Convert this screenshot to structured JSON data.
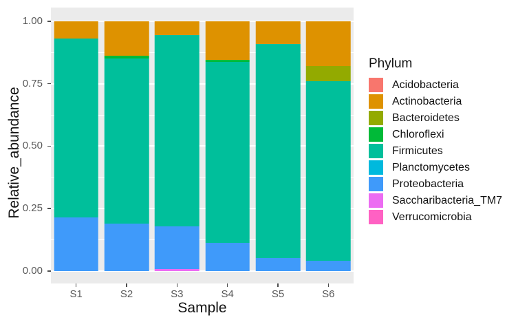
{
  "figure": {
    "background": "#ffffff",
    "panel_background": "#EBEBEB",
    "gridline_color": "#ffffff",
    "tick_label_color": "#595959"
  },
  "chart_data": {
    "type": "bar",
    "stacked": true,
    "title": "",
    "xlabel": "Sample",
    "ylabel": "Relative_abundance",
    "legend_title": "Phylum",
    "legend_position": "right",
    "grid": true,
    "ylim": [
      0,
      1
    ],
    "y_axis_expansion": 0.05,
    "categories": [
      "S1",
      "S2",
      "S3",
      "S4",
      "S5",
      "S6"
    ],
    "y_ticks": {
      "values": [
        0,
        0.25,
        0.5,
        0.75,
        1.0
      ],
      "labels": [
        "0.00",
        "0.25",
        "0.50",
        "0.75",
        "1.00"
      ]
    },
    "y_minor_ticks": [
      0.125,
      0.375,
      0.625,
      0.875
    ],
    "series": [
      {
        "name": "Acidobacteria",
        "color": "#F8766D",
        "values": [
          0,
          0,
          0,
          0,
          0,
          0
        ]
      },
      {
        "name": "Actinobacteria",
        "color": "#DE9200",
        "values": [
          0.07,
          0.138,
          0.055,
          0.155,
          0.092,
          0.18
        ]
      },
      {
        "name": "Bacteroidetes",
        "color": "#93AA00",
        "values": [
          0,
          0,
          0,
          0,
          0,
          0.06
        ]
      },
      {
        "name": "Chloroflexi",
        "color": "#00BA38",
        "values": [
          0,
          0.012,
          0,
          0.008,
          0,
          0
        ]
      },
      {
        "name": "Firmicutes",
        "color": "#00BF9B",
        "values": [
          0.715,
          0.66,
          0.767,
          0.725,
          0.856,
          0.72
        ]
      },
      {
        "name": "Planctomycetes",
        "color": "#00B9DD",
        "values": [
          0,
          0,
          0,
          0,
          0,
          0
        ]
      },
      {
        "name": "Proteobacteria",
        "color": "#3F9AFA",
        "values": [
          0.215,
          0.19,
          0.17,
          0.112,
          0.052,
          0.04
        ]
      },
      {
        "name": "Saccharibacteria_TM7",
        "color": "#EC6CF2",
        "values": [
          0,
          0,
          0.008,
          0,
          0,
          0
        ]
      },
      {
        "name": "Verrucomicrobia",
        "color": "#FF61C3",
        "values": [
          0,
          0,
          0,
          0,
          0,
          0
        ]
      }
    ]
  }
}
